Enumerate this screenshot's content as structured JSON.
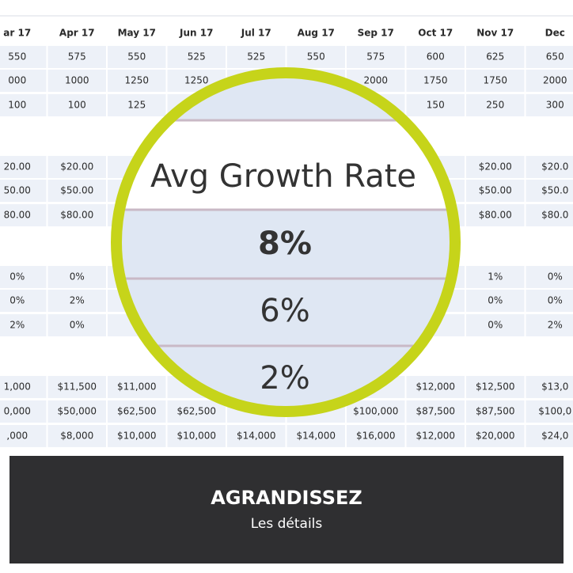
{
  "table": {
    "header": [
      "ar 17",
      "Apr 17",
      "May 17",
      "Jun 17",
      "Jul 17",
      "Aug 17",
      "Sep 17",
      "Oct 17",
      "Nov 17",
      "Dec"
    ],
    "rows": [
      [
        "550",
        "575",
        "550",
        "525",
        "525",
        "550",
        "575",
        "600",
        "625",
        "650"
      ],
      [
        "000",
        "1000",
        "1250",
        "1250",
        null,
        null,
        "2000",
        "1750",
        "1750",
        "2000"
      ],
      [
        "100",
        "100",
        "125",
        null,
        null,
        null,
        null,
        "150",
        "250",
        "300"
      ],
      [
        "20.00",
        "$20.00",
        null,
        null,
        null,
        null,
        null,
        null,
        "$20.00",
        "$20.0"
      ],
      [
        "50.00",
        "$50.00",
        null,
        null,
        null,
        null,
        null,
        null,
        "$50.00",
        "$50.0"
      ],
      [
        "80.00",
        "$80.00",
        null,
        null,
        null,
        null,
        null,
        null,
        "$80.00",
        "$80.0"
      ],
      [
        "0%",
        "0%",
        null,
        null,
        null,
        null,
        null,
        null,
        "1%",
        "0%"
      ],
      [
        "0%",
        "2%",
        null,
        null,
        null,
        null,
        null,
        null,
        "0%",
        "0%"
      ],
      [
        "2%",
        "0%",
        null,
        null,
        null,
        null,
        null,
        null,
        "0%",
        "2%"
      ],
      [
        "1,000",
        "$11,500",
        "$11,000",
        null,
        null,
        null,
        null,
        "$12,000",
        "$12,500",
        "$13,0"
      ],
      [
        "0,000",
        "$50,000",
        "$62,500",
        "$62,500",
        null,
        null,
        "$100,000",
        "$87,500",
        "$87,500",
        "$100,0"
      ],
      [
        ",000",
        "$8,000",
        "$10,000",
        "$10,000",
        "$14,000",
        "$14,000",
        "$16,000",
        "$12,000",
        "$20,000",
        "$24,0"
      ]
    ]
  },
  "magnifier": {
    "title": "Avg Growth Rate",
    "values": [
      "8%",
      "6%",
      "2%"
    ]
  },
  "banner": {
    "title": "AGRANDISSEZ",
    "subtitle": "Les détails"
  }
}
